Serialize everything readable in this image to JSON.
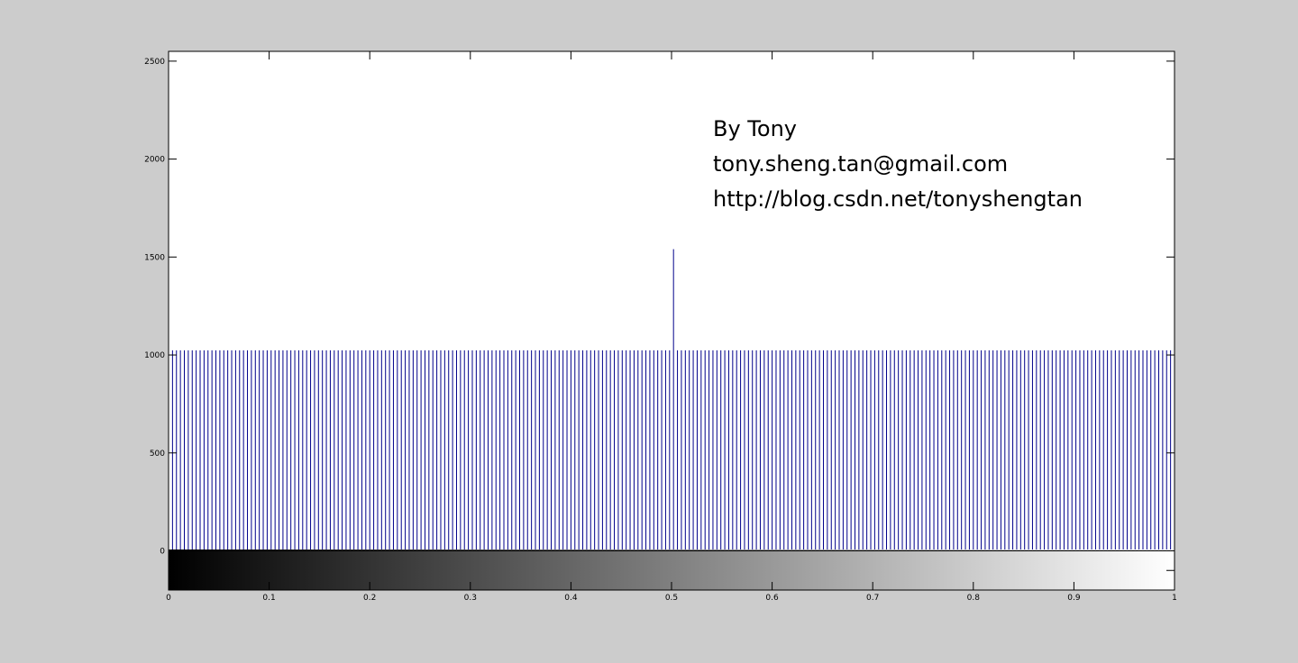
{
  "chart_data": {
    "type": "bar",
    "title": "",
    "xlabel": "",
    "ylabel": "",
    "xlim": [
      0,
      1
    ],
    "ylim": [
      -200,
      2550
    ],
    "x_ticks": [
      0,
      0.1,
      0.2,
      0.3,
      0.4,
      0.5,
      0.6,
      0.7,
      0.8,
      0.9,
      1
    ],
    "x_tick_labels": [
      "0",
      "0.1",
      "0.2",
      "0.3",
      "0.4",
      "0.5",
      "0.6",
      "0.7",
      "0.8",
      "0.9",
      "1"
    ],
    "y_ticks": [
      0,
      500,
      1000,
      1500,
      2000,
      2500
    ],
    "y_tick_labels": [
      "0",
      "500",
      "1000",
      "1500",
      "2000",
      "2500"
    ],
    "grid": false,
    "colorbar": "grayscale gradient from black at 0 to white at 1, below the baseline",
    "series": [
      {
        "values_description": "histogram counts over 256 gray-level bins spanning 0 to 1",
        "bin_count": 256,
        "baseline_value": 1024,
        "peak": {
          "x": 0.502,
          "value": 1540
        }
      }
    ],
    "annotations": [
      "By Tony",
      "tony.sheng.tan@gmail.com",
      "http://blog.csdn.net/tonyshengtan"
    ],
    "colors": {
      "bars": "#00008b",
      "axes": "#000000",
      "plot_background": "#ffffff",
      "figure_background": "#cccccc"
    }
  }
}
